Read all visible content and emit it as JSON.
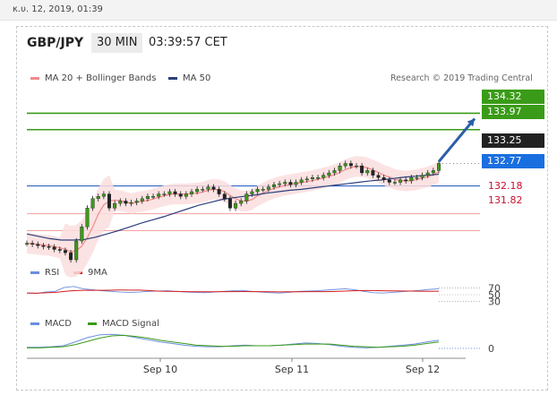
{
  "timestamp": "κ.υ. 12, 2019, 01:39",
  "header": {
    "symbol": "GBP/JPY",
    "timeframe": "30 MIN",
    "time": "03:39:57 CET"
  },
  "legend": {
    "ma20": "MA 20 + Bollinger Bands",
    "ma50": "MA 50",
    "rsi": "RSI",
    "rsi9": "9MA",
    "macd": "MACD",
    "macd_signal": "MACD Signal"
  },
  "credit": "Research © 2019 Trading Central",
  "colors": {
    "resistance": "#3a9b18",
    "pivot_box": "#1a6fe0",
    "support": "#c8102e",
    "price_box": "#222222",
    "arrow": "#2a5fa8",
    "bands": "#fcdede"
  },
  "chart_data": {
    "type": "line",
    "instrument": "GBP/JPY",
    "x_ticks": [
      "Sep 10",
      "Sep 11",
      "Sep 12"
    ],
    "ylim": [
      131.2,
      134.9
    ],
    "levels": [
      {
        "value": 134.32,
        "label": "134.32",
        "kind": "resistance"
      },
      {
        "value": 133.97,
        "label": "133.97",
        "kind": "resistance"
      },
      {
        "value": 133.25,
        "label": "133.25",
        "kind": "last-price"
      },
      {
        "value": 132.77,
        "label": "132.77",
        "kind": "pivot"
      },
      {
        "value": 132.18,
        "label": "132.18",
        "kind": "support"
      },
      {
        "value": 131.82,
        "label": "131.82",
        "kind": "support"
      }
    ],
    "price_series": [
      131.55,
      131.53,
      131.5,
      131.48,
      131.47,
      131.42,
      131.4,
      131.35,
      131.2,
      131.6,
      131.9,
      132.3,
      132.5,
      132.55,
      132.6,
      132.3,
      132.4,
      132.45,
      132.4,
      132.42,
      132.45,
      132.5,
      132.55,
      132.55,
      132.6,
      132.6,
      132.65,
      132.6,
      132.55,
      132.6,
      132.65,
      132.7,
      132.7,
      132.75,
      132.7,
      132.6,
      132.5,
      132.3,
      132.4,
      132.45,
      132.6,
      132.65,
      132.7,
      132.7,
      132.75,
      132.8,
      132.82,
      132.85,
      132.8,
      132.85,
      132.9,
      132.92,
      132.95,
      132.95,
      133.0,
      133.05,
      133.1,
      133.2,
      133.25,
      133.2,
      133.2,
      133.05,
      133.1,
      133.0,
      132.95,
      132.9,
      132.85,
      132.85,
      132.9,
      132.88,
      132.95,
      132.95,
      133.0,
      133.05,
      133.1,
      133.25
    ],
    "ma50_series": [
      131.75,
      131.7,
      131.65,
      131.62,
      131.62,
      131.63,
      131.68,
      131.75,
      131.82,
      131.9,
      131.98,
      132.05,
      132.12,
      132.2,
      132.28,
      132.36,
      132.42,
      132.48,
      132.52,
      132.55,
      132.58,
      132.62,
      132.65,
      132.68,
      132.7,
      132.73,
      132.76,
      132.79,
      132.82,
      132.85,
      132.88,
      132.9,
      132.93,
      132.96,
      132.98,
      133.0,
      133.02
    ],
    "rsi": {
      "levels": [
        70,
        50,
        30
      ],
      "values": [
        55,
        54,
        58,
        60,
        72,
        75,
        68,
        65,
        62,
        60,
        58,
        57,
        58,
        60,
        61,
        62,
        60,
        58,
        57,
        56,
        58,
        60,
        62,
        63,
        60,
        58,
        56,
        55,
        57,
        60,
        61,
        62,
        64,
        66,
        68,
        65,
        60,
        56,
        55,
        57,
        59,
        61,
        63,
        66,
        68
      ]
    },
    "macd": {
      "zero_label": "0",
      "macd": [
        0.02,
        0.02,
        0.03,
        0.05,
        0.12,
        0.2,
        0.25,
        0.26,
        0.24,
        0.2,
        0.16,
        0.12,
        0.09,
        0.06,
        0.04,
        0.03,
        0.03,
        0.05,
        0.06,
        0.05,
        0.05,
        0.06,
        0.08,
        0.1,
        0.09,
        0.07,
        0.04,
        0.02,
        0.01,
        0.02,
        0.04,
        0.06,
        0.08,
        0.12,
        0.15
      ],
      "signal": [
        0.01,
        0.01,
        0.02,
        0.03,
        0.07,
        0.13,
        0.19,
        0.23,
        0.24,
        0.22,
        0.19,
        0.15,
        0.12,
        0.09,
        0.06,
        0.05,
        0.04,
        0.04,
        0.05,
        0.05,
        0.05,
        0.06,
        0.07,
        0.08,
        0.08,
        0.08,
        0.06,
        0.04,
        0.03,
        0.02,
        0.03,
        0.04,
        0.06,
        0.09,
        0.12
      ]
    }
  }
}
